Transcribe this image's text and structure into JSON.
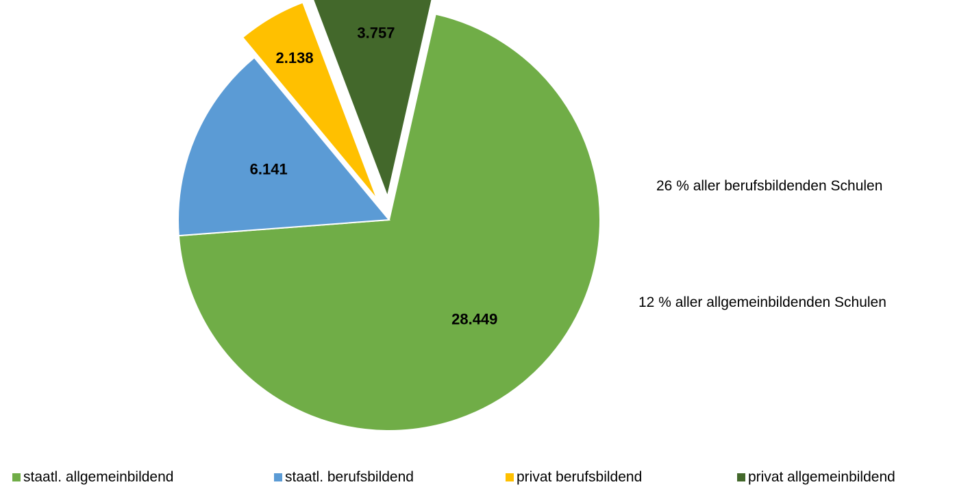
{
  "chart_data": {
    "type": "pie",
    "slices": [
      {
        "label": "staatl. allgemeinbildend",
        "value": 28449,
        "display": "28.449",
        "color": "#70AD47",
        "exploded": false
      },
      {
        "label": "staatl. berufsbildend",
        "value": 6141,
        "display": "6.141",
        "color": "#5B9BD5",
        "exploded": false
      },
      {
        "label": "privat berufsbildend",
        "value": 2138,
        "display": "2.138",
        "color": "#FFC000",
        "exploded": true
      },
      {
        "label": "privat allgemeinbildend",
        "value": 3757,
        "display": "3.757",
        "color": "#43682B",
        "exploded": true
      }
    ],
    "annotations": [
      {
        "text": "26 % aller berufsbildenden Schulen"
      },
      {
        "text": "12 % aller allgemeinbildenden Schulen"
      }
    ],
    "legend": {
      "position": "bottom",
      "items": [
        "staatl. allgemeinbildend",
        "staatl. berufsbildend",
        "privat berufsbildend",
        "privat allgemeinbildend"
      ]
    }
  }
}
